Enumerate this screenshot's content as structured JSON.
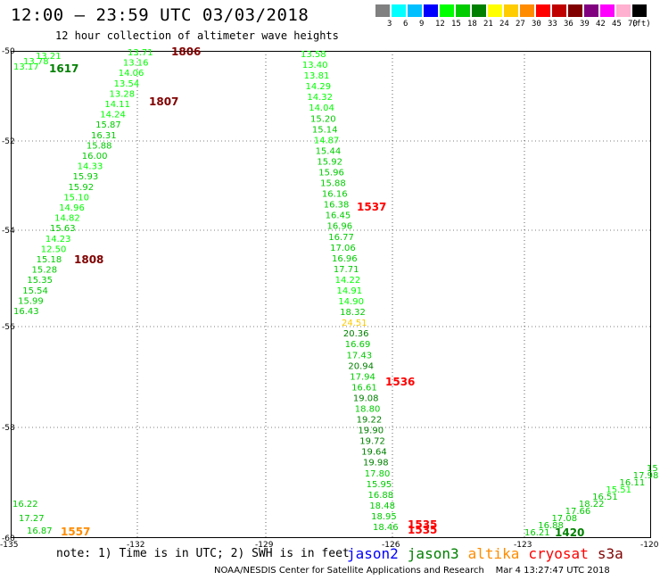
{
  "header": {
    "title": "12:00 – 23:59 UTC 03/03/2018",
    "subtitle": "12 hour collection of altimeter wave heights"
  },
  "legend": {
    "unit": "(ft)",
    "bins": [
      {
        "label": "3",
        "color": "#808080"
      },
      {
        "label": "6",
        "color": "#00ffff"
      },
      {
        "label": "9",
        "color": "#00bfff"
      },
      {
        "label": "12",
        "color": "#0000ff"
      },
      {
        "label": "15",
        "color": "#00ff00"
      },
      {
        "label": "18",
        "color": "#00cc00"
      },
      {
        "label": "21",
        "color": "#008000"
      },
      {
        "label": "24",
        "color": "#ffff00"
      },
      {
        "label": "27",
        "color": "#ffcc00"
      },
      {
        "label": "30",
        "color": "#ff8c00"
      },
      {
        "label": "33",
        "color": "#ff0000"
      },
      {
        "label": "36",
        "color": "#c00000"
      },
      {
        "label": "39",
        "color": "#800000"
      },
      {
        "label": "42",
        "color": "#800080"
      },
      {
        "label": "45",
        "color": "#ff00ff"
      },
      {
        "label": "70",
        "color": "#ffb0d0"
      },
      {
        "label": "",
        "color": "#000000"
      }
    ]
  },
  "map": {
    "lat_ticks": [
      "-50",
      "-52",
      "-54",
      "-56",
      "-58",
      "-60"
    ],
    "lon_ticks": [
      "-135",
      "-132",
      "-129",
      "-126",
      "-123",
      "-120"
    ],
    "grid": true
  },
  "tracks": [
    {
      "name": "track-a",
      "values": [
        "13.71",
        "13.16",
        "14.06",
        "13.54",
        "13.28",
        "14.11",
        "14.24",
        "15.87",
        "16.31",
        "15.88",
        "16.00",
        "14.33",
        "15.93",
        "15.92",
        "15.10",
        "14.96",
        "14.82",
        "15.63",
        "14.23",
        "12.50",
        "15.18",
        "15.28",
        "15.35",
        "15.54",
        "15.99",
        "16.43"
      ],
      "colors": [
        "#00ff00",
        "#00ff00",
        "#00ff00",
        "#00ff00",
        "#00ff00",
        "#00ff00",
        "#00ff00",
        "#00cc00",
        "#00cc00",
        "#00cc00",
        "#00cc00",
        "#00ff00",
        "#00cc00",
        "#00cc00",
        "#00ff00",
        "#00ff00",
        "#00ff00",
        "#00cc00",
        "#00ff00",
        "#00ff00",
        "#00cc00",
        "#00cc00",
        "#00cc00",
        "#00cc00",
        "#00cc00",
        "#00cc00"
      ],
      "times": [
        {
          "value": "1806",
          "color": "#800000"
        },
        {
          "value": "1807",
          "color": "#800000"
        },
        {
          "value": "1808",
          "color": "#800000"
        }
      ]
    },
    {
      "name": "track-b",
      "values": [
        "13.21",
        "13.78",
        "13.17"
      ],
      "colors": [
        "#00ff00",
        "#00ff00",
        "#00ff00"
      ],
      "times": [
        {
          "value": "1617",
          "color": "#008000"
        }
      ]
    },
    {
      "name": "track-c",
      "values": [
        "13.58",
        "13.40",
        "13.81",
        "14.29",
        "14.32",
        "14.04",
        "15.20",
        "15.14",
        "14.87",
        "15.44",
        "15.92",
        "15.96",
        "15.88",
        "16.16",
        "16.38",
        "16.45",
        "16.96",
        "16.77",
        "17.06",
        "16.96",
        "17.71",
        "14.22",
        "14.91",
        "14.90",
        "18.32",
        "24.51",
        "20.36",
        "16.69",
        "17.43",
        "20.94",
        "17.94",
        "16.61",
        "19.08",
        "18.80",
        "19.22",
        "19.90",
        "19.72",
        "19.64",
        "19.98",
        "17.80",
        "15.95",
        "16.88",
        "18.48",
        "18.95",
        "18.46"
      ],
      "colors": [
        "#00ff00",
        "#00ff00",
        "#00ff00",
        "#00ff00",
        "#00ff00",
        "#00ff00",
        "#00cc00",
        "#00cc00",
        "#00ff00",
        "#00cc00",
        "#00cc00",
        "#00cc00",
        "#00cc00",
        "#00cc00",
        "#00cc00",
        "#00cc00",
        "#00cc00",
        "#00cc00",
        "#00cc00",
        "#00cc00",
        "#00cc00",
        "#00ff00",
        "#00ff00",
        "#00ff00",
        "#00cc00",
        "#ffcc00",
        "#008000",
        "#00cc00",
        "#00cc00",
        "#008000",
        "#00cc00",
        "#00cc00",
        "#008000",
        "#00cc00",
        "#008000",
        "#008000",
        "#008000",
        "#008000",
        "#008000",
        "#00cc00",
        "#00cc00",
        "#00cc00",
        "#00cc00",
        "#00cc00",
        "#00cc00"
      ],
      "times": [
        {
          "value": "1537",
          "color": "#ff0000"
        },
        {
          "value": "1536",
          "color": "#ff0000"
        },
        {
          "value": "1535",
          "color": "#ff0000"
        },
        {
          "value": "1535",
          "color": "#ff0000"
        }
      ]
    },
    {
      "name": "track-d",
      "values": [
        "16.22",
        "17.27",
        "16.87"
      ],
      "colors": [
        "#00cc00",
        "#00cc00",
        "#00cc00"
      ],
      "times": [
        {
          "value": "1557",
          "color": "#ff8c00"
        }
      ]
    },
    {
      "name": "track-e",
      "values": [
        "16.21",
        "16.88",
        "17.08",
        "17.66",
        "18.22",
        "16.51",
        "15.51",
        "16.11",
        "17.98",
        "15"
      ],
      "colors": [
        "#00cc00",
        "#00cc00",
        "#00cc00",
        "#00cc00",
        "#00cc00",
        "#00cc00",
        "#00ff00",
        "#00cc00",
        "#00cc00",
        "#00cc00"
      ],
      "times": [
        {
          "value": "1420",
          "color": "#008000"
        }
      ]
    }
  ],
  "footer": {
    "note": "note: 1) Time is in UTC; 2) SWH is in feet",
    "satellites": [
      {
        "name": "jason2",
        "color": "#0000ff"
      },
      {
        "name": "jason3",
        "color": "#008000"
      },
      {
        "name": "altika",
        "color": "#ff8c00"
      },
      {
        "name": "cryosat",
        "color": "#ff0000"
      },
      {
        "name": "s3a",
        "color": "#800000"
      }
    ],
    "credit": "NOAA/NESDIS Center for Satellite Applications and Research",
    "timestamp": "Mar  4 13:27:47 UTC 2018"
  }
}
